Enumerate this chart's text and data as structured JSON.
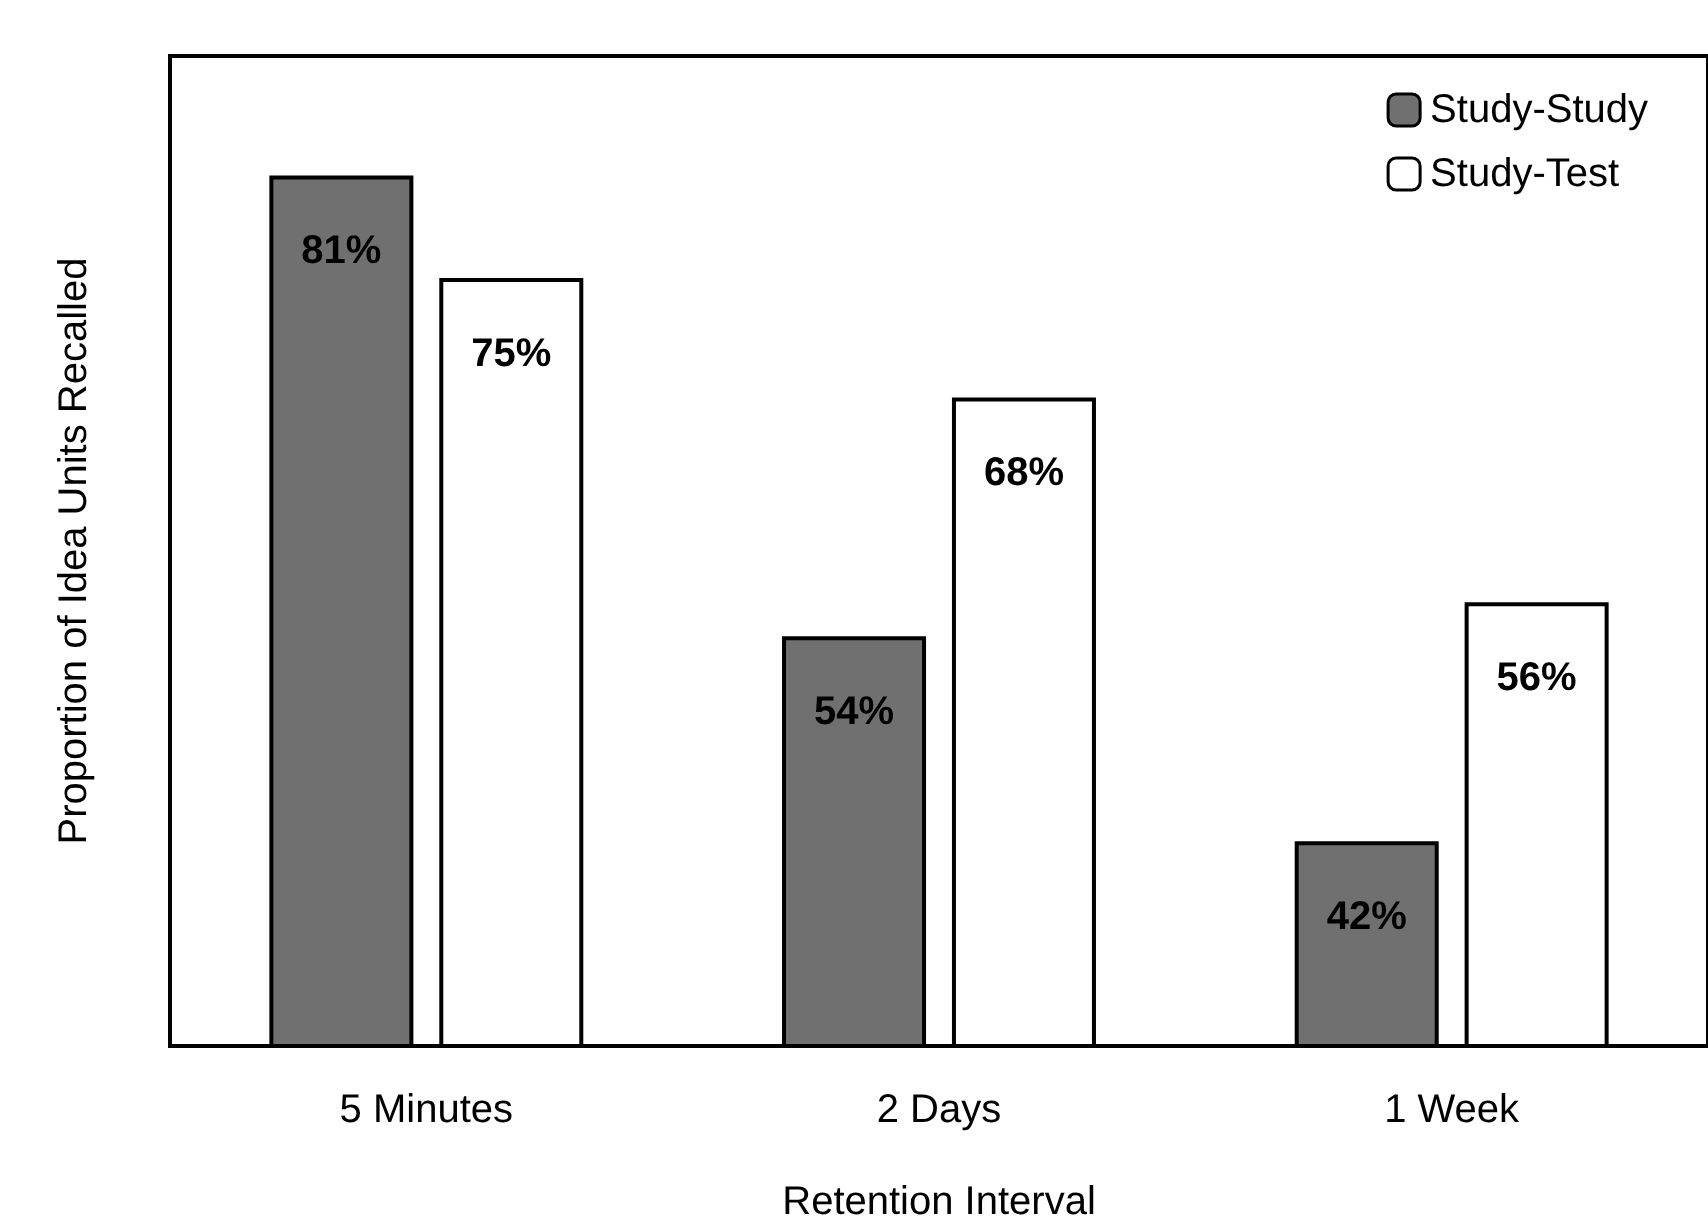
{
  "chart_data": {
    "type": "bar",
    "xlabel": "Retention Interval",
    "ylabel": "Proportion of Idea Units Recalled",
    "categories": [
      "5 Minutes",
      "2 Days",
      "1 Week"
    ],
    "series": [
      {
        "name": "Study-Study",
        "color": "#707070",
        "values": [
          81,
          54,
          42
        ],
        "value_labels": [
          "81%",
          "54%",
          "42%"
        ]
      },
      {
        "name": "Study-Test",
        "color": "#ffffff",
        "values": [
          75,
          68,
          56
        ],
        "value_labels": [
          "75%",
          "68%",
          "56%"
        ]
      }
    ],
    "ylim": [
      30,
      88
    ],
    "tick_labels": "x",
    "legend": "top right"
  }
}
